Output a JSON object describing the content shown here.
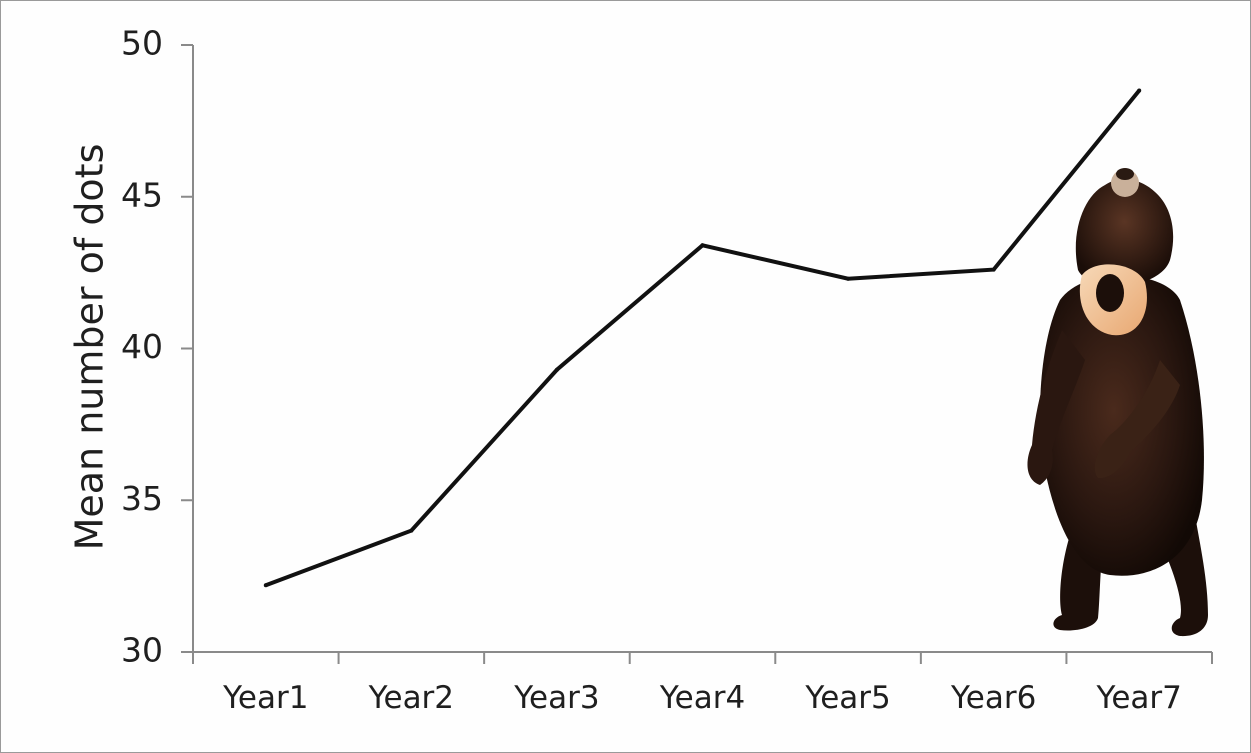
{
  "chart_data": {
    "type": "line",
    "title": "",
    "xlabel": "",
    "ylabel": "Mean number of dots",
    "categories": [
      "Year1",
      "Year2",
      "Year3",
      "Year4",
      "Year5",
      "Year6",
      "Year7"
    ],
    "series": [
      {
        "values": [
          32.2,
          34.0,
          39.3,
          43.4,
          42.3,
          42.6,
          48.5
        ]
      }
    ],
    "ylim": [
      30,
      50
    ],
    "yticks": [
      "30",
      "35",
      "40",
      "45",
      "50"
    ],
    "grid": false,
    "legend": "none",
    "line_color": "#111111",
    "axis_color": "#8a8a8a"
  },
  "illustration": {
    "subject": "sun-bear-standing"
  }
}
